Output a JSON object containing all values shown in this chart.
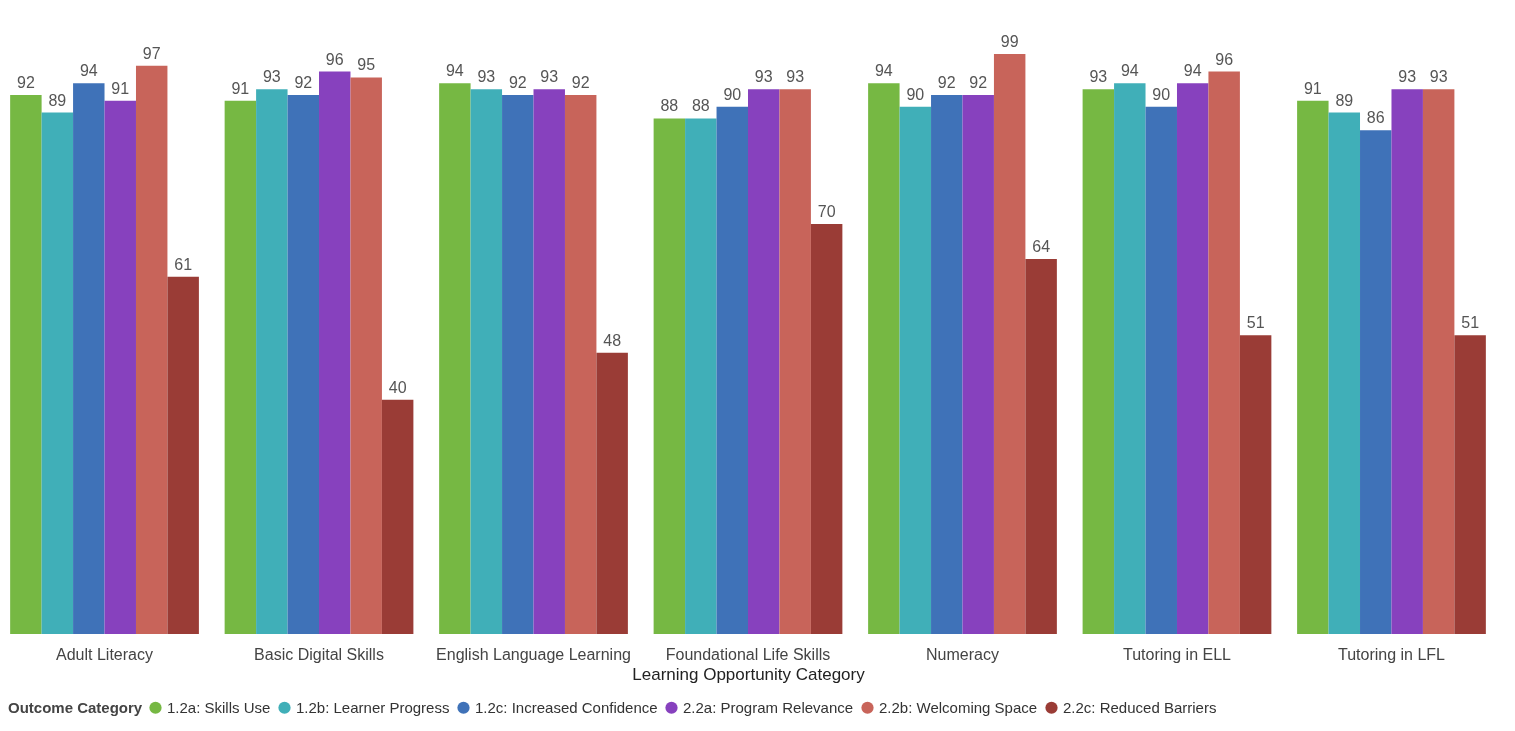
{
  "chart_data": {
    "type": "bar",
    "xlabel": "Learning Opportunity Category",
    "legend_title": "Outcome Category",
    "legend": "bottom",
    "data_labels": true,
    "tick_labels": "x",
    "categories": [
      "Adult Literacy",
      "Basic Digital Skills",
      "English Language Learning",
      "Foundational Life Skills",
      "Numeracy",
      "Tutoring in ELL",
      "Tutoring in LFL"
    ],
    "series": [
      {
        "name": "1.2a: Skills Use",
        "color": "#76b843",
        "values": [
          92,
          91,
          94,
          88,
          94,
          93,
          91
        ]
      },
      {
        "name": "1.2b: Learner Progress",
        "color": "#40afb8",
        "values": [
          89,
          93,
          93,
          88,
          90,
          94,
          89
        ]
      },
      {
        "name": "1.2c: Increased Confidence",
        "color": "#3f72b8",
        "values": [
          94,
          92,
          92,
          90,
          92,
          90,
          86
        ]
      },
      {
        "name": "2.2a: Program Relevance",
        "color": "#8741be",
        "values": [
          91,
          96,
          93,
          93,
          92,
          94,
          93
        ]
      },
      {
        "name": "2.2b: Welcoming Space",
        "color": "#c8645a",
        "values": [
          97,
          95,
          92,
          93,
          99,
          96,
          93
        ]
      },
      {
        "name": "2.2c: Reduced Barriers",
        "color": "#9a3c36",
        "values": [
          61,
          40,
          48,
          70,
          64,
          51,
          51
        ]
      }
    ]
  }
}
